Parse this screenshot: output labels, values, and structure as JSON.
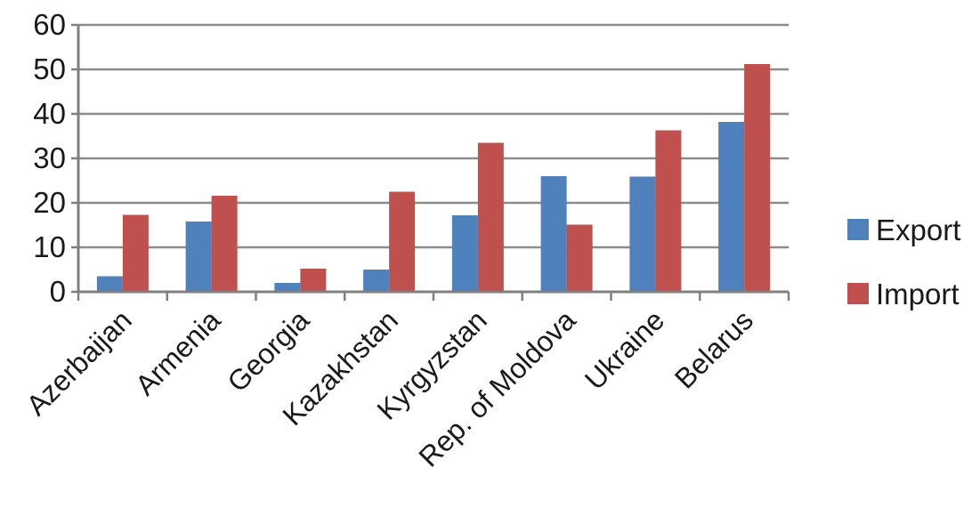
{
  "chart_data": {
    "type": "bar",
    "categories": [
      "Azerbaijan",
      "Armenia",
      "Georgia",
      "Kazakhstan",
      "Kyrgyzstan",
      "Rep. of Moldova",
      "Ukraine",
      "Belarus"
    ],
    "series": [
      {
        "name": "Export",
        "color": "#4f81bd",
        "values": [
          3.5,
          15.8,
          2.0,
          5.0,
          17.2,
          26.0,
          25.9,
          38.2
        ]
      },
      {
        "name": "Import",
        "color": "#c0504d",
        "values": [
          17.3,
          21.6,
          5.2,
          22.5,
          33.5,
          15.1,
          36.3,
          51.2
        ]
      }
    ],
    "ylim": [
      0,
      60
    ],
    "yticks": [
      0,
      10,
      20,
      30,
      40,
      50,
      60
    ],
    "grid": true,
    "legend_position": "right",
    "title": "",
    "xlabel": "",
    "ylabel": ""
  }
}
